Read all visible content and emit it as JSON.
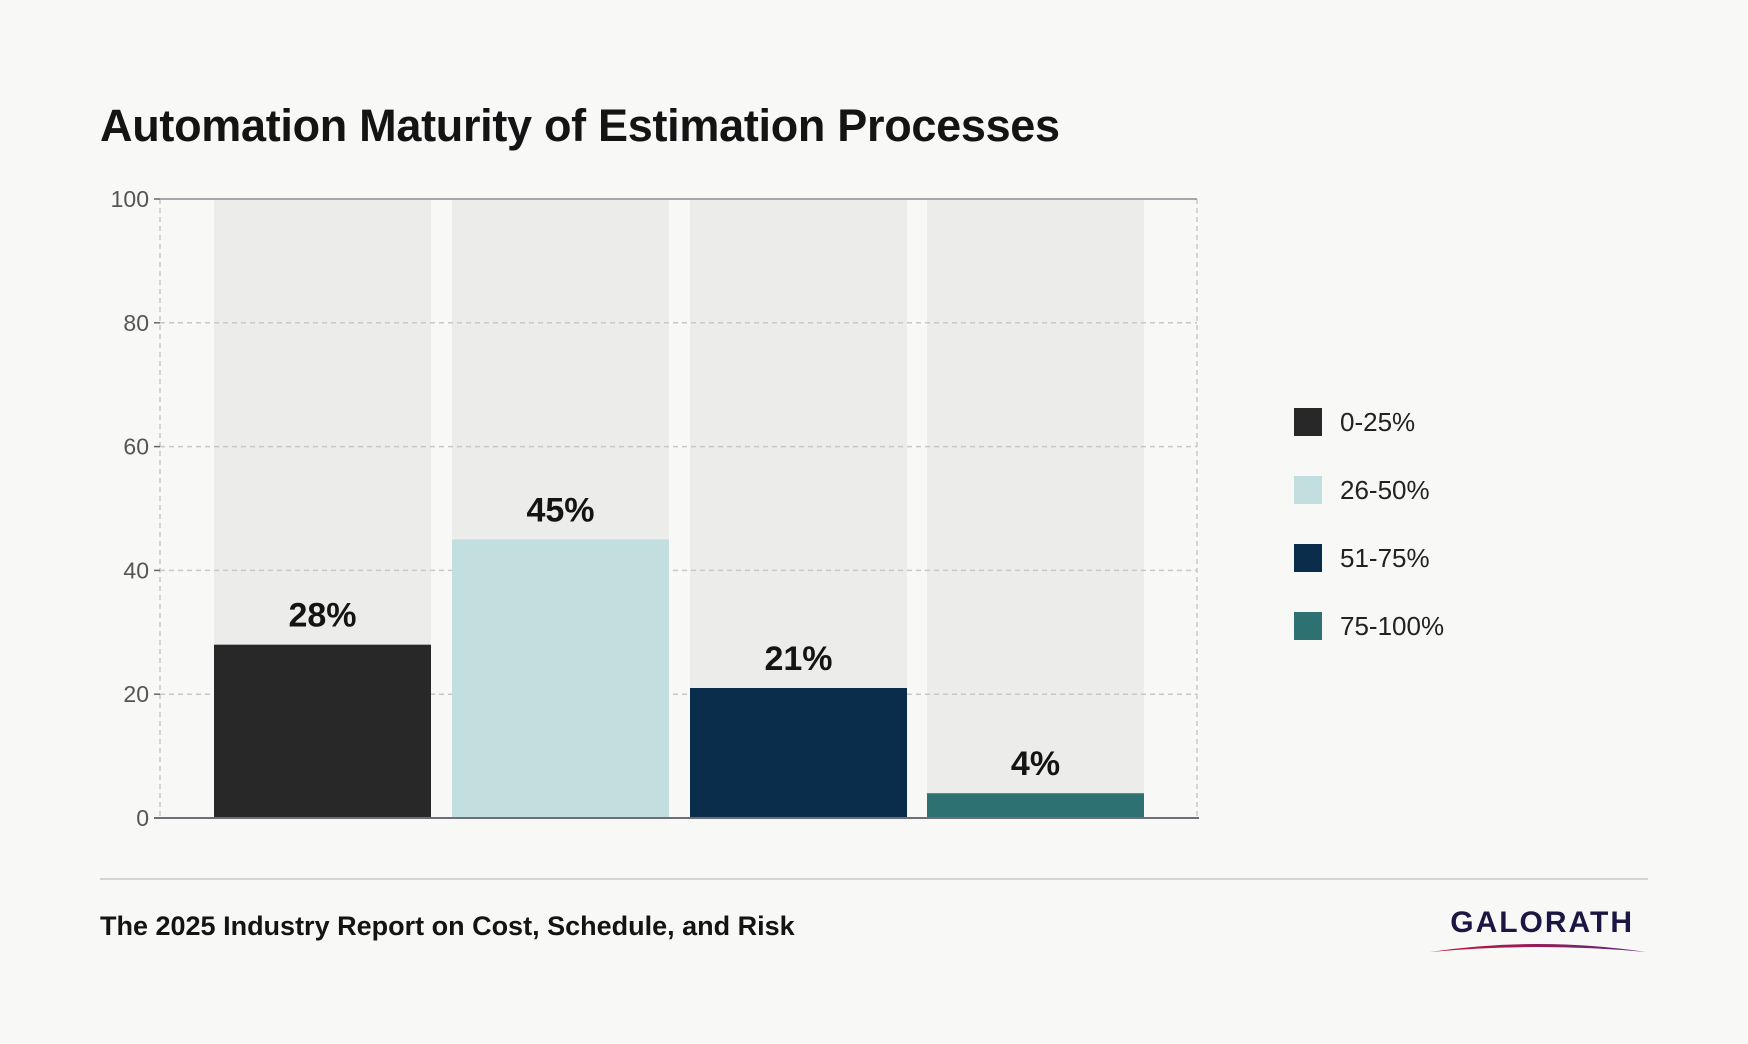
{
  "title": "Automation Maturity of Estimation Processes",
  "footer": {
    "report": "The 2025 Industry Report on Cost, Schedule, and Risk",
    "brand": "GALORATH"
  },
  "colors": {
    "background": "#f8f8f7",
    "bar_track": "#ececea",
    "grid": "#c8c8c8",
    "brand_text": "#1b1642",
    "brand_swoosh_start": "#c8103a",
    "brand_swoosh_end": "#5a2a7a"
  },
  "chart_data": {
    "type": "bar",
    "categories": [
      "0-25%",
      "26-50%",
      "51-75%",
      "75-100%"
    ],
    "values": [
      28,
      45,
      21,
      4
    ],
    "data_labels": [
      "28%",
      "45%",
      "21%",
      "4%"
    ],
    "colors": [
      "#282828",
      "#c2dedf",
      "#0a2d4b",
      "#2d7173"
    ],
    "ylim": [
      0,
      100
    ],
    "yticks": [
      0,
      20,
      40,
      60,
      80,
      100
    ],
    "grid": true,
    "legend_position": "right",
    "background_bars": true
  }
}
